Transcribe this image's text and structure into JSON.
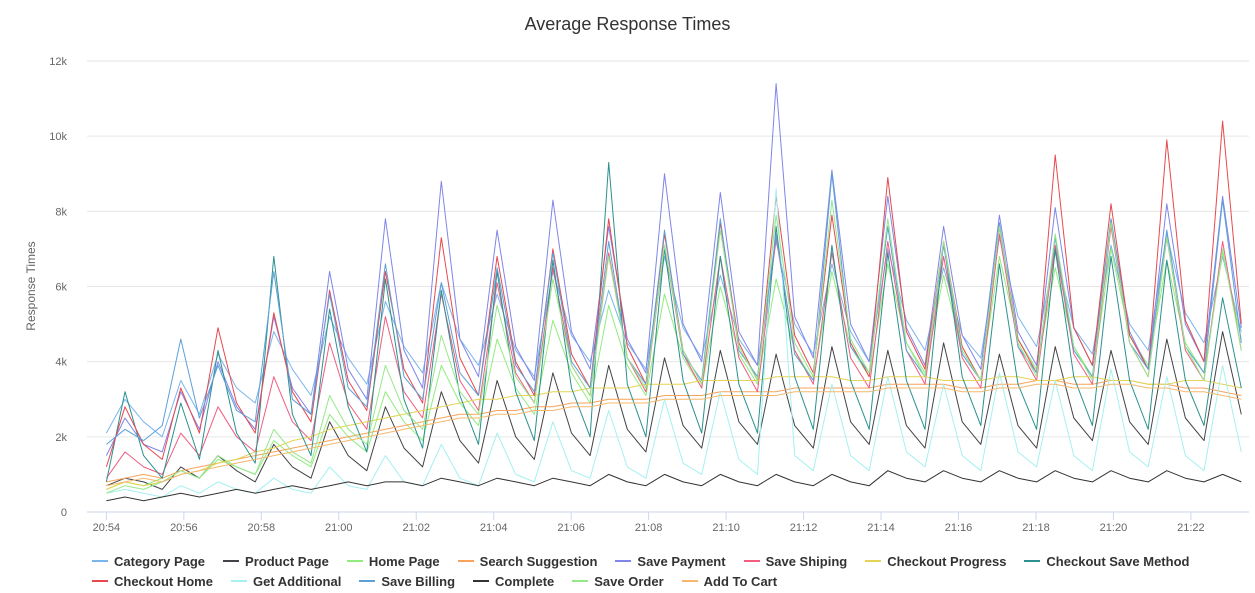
{
  "chart_data": {
    "type": "line",
    "title": "Average Response Times",
    "xlabel": "",
    "ylabel": "Response Times",
    "ylim": [
      0,
      12000
    ],
    "yticks": [
      0,
      2000,
      4000,
      6000,
      8000,
      10000,
      12000
    ],
    "ytick_labels": [
      "0",
      "2k",
      "4k",
      "6k",
      "8k",
      "10k",
      "12k"
    ],
    "xlim": [
      "20:53.5",
      "21:23.5"
    ],
    "xticks": [
      "20:54",
      "20:56",
      "20:58",
      "21:00",
      "21:02",
      "21:04",
      "21:06",
      "21:08",
      "21:10",
      "21:12",
      "21:14",
      "21:16",
      "21:18",
      "21:20",
      "21:22"
    ],
    "grid": true,
    "legend_position": "bottom",
    "series": [
      {
        "name": "Category Page",
        "color": "#7cb5ec",
        "values": [
          2100,
          3000,
          2400,
          2000,
          3500,
          2600,
          4200,
          3300,
          2900,
          4800,
          3800,
          3100,
          5200,
          4100,
          3400,
          5600,
          4400,
          3700,
          6100,
          4600,
          3900,
          5800,
          4300,
          3600,
          6400,
          4700,
          4000,
          5900,
          4500,
          3800,
          6800,
          4900,
          4100,
          6300,
          4600,
          3900,
          7200,
          5000,
          4200,
          6600,
          4800,
          4000,
          7000,
          5100,
          4300,
          6500,
          4700,
          4100,
          7300,
          5200,
          4400,
          6900,
          4900,
          4200,
          7100,
          5000,
          4300,
          7400,
          5300,
          4500,
          6800,
          4800
        ]
      },
      {
        "name": "Product Page",
        "color": "#434348",
        "values": [
          700,
          900,
          800,
          600,
          1200,
          900,
          1500,
          1100,
          800,
          1800,
          1200,
          900,
          2400,
          1500,
          1100,
          2800,
          1700,
          1200,
          3200,
          1900,
          1300,
          3500,
          2000,
          1400,
          3700,
          2100,
          1500,
          3900,
          2200,
          1600,
          4100,
          2300,
          1700,
          4300,
          2400,
          1800,
          4200,
          2300,
          1700,
          4400,
          2400,
          1800,
          4300,
          2300,
          1700,
          4500,
          2400,
          1800,
          4200,
          2300,
          1700,
          4400,
          2500,
          1900,
          4300,
          2400,
          1800,
          4600,
          2500,
          1900,
          4800,
          2600
        ]
      },
      {
        "name": "Home Page",
        "color": "#90ed7d",
        "values": [
          600,
          800,
          700,
          900,
          1100,
          900,
          1400,
          1200,
          1000,
          1900,
          1500,
          1200,
          2600,
          2000,
          1600,
          3200,
          2400,
          1900,
          3900,
          2900,
          2300,
          4600,
          3300,
          2600,
          5100,
          3700,
          2900,
          5500,
          3900,
          3100,
          5800,
          4100,
          3300,
          6000,
          4200,
          3400,
          6200,
          4300,
          3500,
          6400,
          4400,
          3600,
          6600,
          4500,
          3700,
          6300,
          4300,
          3500,
          6800,
          4600,
          3800,
          6500,
          4400,
          3600,
          7000,
          4700,
          3900,
          6700,
          4500,
          3700,
          6900,
          4600
        ]
      },
      {
        "name": "Search Suggestion",
        "color": "#f7a35c",
        "values": [
          800,
          900,
          1000,
          900,
          1100,
          1200,
          1300,
          1400,
          1500,
          1600,
          1700,
          1800,
          1900,
          2000,
          2100,
          2200,
          2300,
          2400,
          2500,
          2600,
          2600,
          2700,
          2700,
          2800,
          2800,
          2900,
          2900,
          3000,
          3000,
          3000,
          3100,
          3100,
          3100,
          3200,
          3200,
          3200,
          3200,
          3300,
          3300,
          3300,
          3300,
          3300,
          3400,
          3400,
          3400,
          3400,
          3300,
          3300,
          3400,
          3400,
          3500,
          3500,
          3400,
          3400,
          3500,
          3500,
          3400,
          3400,
          3300,
          3300,
          3200,
          3100
        ]
      },
      {
        "name": "Save Payment",
        "color": "#8085e9",
        "values": [
          1500,
          2500,
          1800,
          1600,
          3200,
          2200,
          4000,
          2800,
          2200,
          5200,
          3300,
          2600,
          6400,
          3800,
          3000,
          7800,
          4300,
          3300,
          8800,
          4600,
          3600,
          7500,
          4400,
          3500,
          8300,
          4800,
          3800,
          7600,
          4600,
          3700,
          9000,
          5000,
          4000,
          8500,
          4800,
          3900,
          11400,
          5200,
          4100,
          9100,
          5000,
          4000,
          8400,
          4900,
          3900,
          7600,
          4700,
          3800,
          7900,
          4800,
          3900,
          8100,
          4900,
          3900,
          7800,
          4800,
          3800,
          8200,
          5000,
          4000,
          8400,
          4900
        ]
      },
      {
        "name": "Save Shiping",
        "color": "#f15c80",
        "values": [
          900,
          1600,
          1200,
          1000,
          2100,
          1500,
          2800,
          2000,
          1600,
          3600,
          2400,
          1900,
          4500,
          2900,
          2200,
          5200,
          3200,
          2500,
          5800,
          3500,
          2700,
          6100,
          3700,
          2900,
          6500,
          3900,
          3100,
          6900,
          4100,
          3200,
          7100,
          4200,
          3300,
          6800,
          4100,
          3200,
          7300,
          4300,
          3400,
          6900,
          4100,
          3300,
          7200,
          4300,
          3400,
          6800,
          4100,
          3300,
          7400,
          4400,
          3500,
          7100,
          4200,
          3400,
          7600,
          4500,
          3600,
          7300,
          4300,
          3500,
          7200,
          4300
        ]
      },
      {
        "name": "Checkout Progress",
        "color": "#e4d354",
        "values": [
          600,
          800,
          700,
          800,
          1000,
          1100,
          1300,
          1400,
          1600,
          1700,
          1900,
          2000,
          2200,
          2300,
          2400,
          2500,
          2600,
          2700,
          2800,
          2900,
          3000,
          3000,
          3100,
          3100,
          3200,
          3200,
          3300,
          3300,
          3300,
          3400,
          3400,
          3400,
          3500,
          3500,
          3500,
          3500,
          3600,
          3600,
          3600,
          3600,
          3500,
          3500,
          3600,
          3600,
          3600,
          3500,
          3500,
          3500,
          3600,
          3600,
          3500,
          3500,
          3600,
          3600,
          3500,
          3500,
          3400,
          3400,
          3500,
          3500,
          3400,
          3300
        ]
      },
      {
        "name": "Checkout Save Method",
        "color": "#2b908f",
        "values": [
          800,
          3200,
          1500,
          900,
          2900,
          1400,
          4300,
          2100,
          1300,
          6800,
          2600,
          1500,
          5400,
          2800,
          1600,
          6200,
          3000,
          1700,
          5900,
          3100,
          1800,
          6400,
          3200,
          1900,
          6700,
          3300,
          2000,
          9300,
          3400,
          2000,
          7000,
          3500,
          2100,
          6800,
          3400,
          2100,
          7600,
          3600,
          2200,
          7100,
          3500,
          2200,
          6900,
          3500,
          2200,
          7200,
          3600,
          2300,
          6600,
          3400,
          2200,
          7000,
          3600,
          2300,
          6800,
          3500,
          2200,
          6700,
          3500,
          2300,
          5700,
          3300
        ]
      },
      {
        "name": "Checkout Home",
        "color": "#e8484d",
        "values": [
          1200,
          2800,
          1800,
          1400,
          3300,
          2100,
          4900,
          2900,
          2100,
          5300,
          3200,
          2400,
          5900,
          3500,
          2700,
          6400,
          3800,
          2900,
          7300,
          4100,
          3100,
          6800,
          4000,
          3100,
          7000,
          4200,
          3300,
          7800,
          4400,
          3400,
          7400,
          4300,
          3400,
          7700,
          4500,
          3500,
          8400,
          4700,
          3700,
          7900,
          4500,
          3600,
          8900,
          4800,
          3800,
          7200,
          4400,
          3500,
          7600,
          4600,
          3700,
          9500,
          4900,
          3900,
          8200,
          4700,
          3800,
          9900,
          5100,
          4000,
          10400,
          5000
        ]
      },
      {
        "name": "Get Additional",
        "color": "#a6f0f0",
        "values": [
          500,
          600,
          500,
          400,
          700,
          500,
          800,
          600,
          500,
          900,
          600,
          500,
          1200,
          700,
          600,
          1500,
          800,
          700,
          1800,
          900,
          700,
          2100,
          1000,
          800,
          2400,
          1100,
          900,
          2700,
          1200,
          900,
          3000,
          1300,
          1000,
          3200,
          1400,
          1000,
          8600,
          1500,
          1100,
          3400,
          1500,
          1100,
          3600,
          1600,
          1200,
          3400,
          1500,
          1100,
          3700,
          1600,
          1200,
          3500,
          1500,
          1100,
          3800,
          1600,
          1200,
          3600,
          1500,
          1100,
          3900,
          1600
        ]
      },
      {
        "name": "Save Billing",
        "color": "#5da0d8",
        "values": [
          1800,
          2200,
          1900,
          2300,
          4600,
          2500,
          3900,
          2700,
          2400,
          6400,
          3000,
          2600,
          5800,
          3300,
          2800,
          6600,
          3600,
          3000,
          6100,
          3700,
          3100,
          6500,
          3900,
          3200,
          6900,
          4000,
          3300,
          7200,
          4100,
          3400,
          7500,
          4200,
          3500,
          7800,
          4300,
          3600,
          7400,
          4200,
          3500,
          9000,
          4400,
          3700,
          7600,
          4300,
          3600,
          7100,
          4200,
          3500,
          7700,
          4400,
          3700,
          7300,
          4300,
          3600,
          7800,
          4500,
          3800,
          7500,
          4400,
          3700,
          8300,
          4500
        ]
      },
      {
        "name": "Complete",
        "color": "#333333",
        "values": [
          300,
          400,
          300,
          400,
          500,
          400,
          500,
          600,
          500,
          600,
          700,
          600,
          700,
          800,
          700,
          800,
          800,
          700,
          900,
          800,
          700,
          900,
          800,
          700,
          900,
          800,
          700,
          1000,
          800,
          700,
          1000,
          800,
          700,
          1000,
          800,
          700,
          1000,
          800,
          700,
          1000,
          800,
          700,
          1100,
          900,
          800,
          1100,
          900,
          800,
          1100,
          900,
          800,
          1100,
          900,
          800,
          1100,
          900,
          800,
          1100,
          900,
          800,
          1000,
          800
        ]
      },
      {
        "name": "Save Order",
        "color": "#95e88a",
        "values": [
          500,
          700,
          600,
          800,
          1100,
          900,
          1500,
          1200,
          1000,
          2200,
          1600,
          1300,
          3100,
          2200,
          1800,
          3900,
          2700,
          2200,
          4700,
          3200,
          2600,
          5500,
          3600,
          2900,
          6200,
          3900,
          3100,
          6800,
          4100,
          3300,
          7100,
          4300,
          3400,
          7500,
          4400,
          3500,
          7900,
          4500,
          3600,
          8300,
          4600,
          3700,
          7800,
          4500,
          3600,
          7200,
          4300,
          3500,
          7600,
          4500,
          3600,
          7400,
          4400,
          3500,
          7700,
          4500,
          3600,
          7300,
          4400,
          3500,
          7000,
          4300
        ]
      },
      {
        "name": "Add To Cart",
        "color": "#f5b86e",
        "values": [
          700,
          800,
          900,
          800,
          1000,
          1100,
          1200,
          1300,
          1400,
          1500,
          1600,
          1700,
          1800,
          1900,
          2000,
          2100,
          2200,
          2300,
          2400,
          2500,
          2500,
          2600,
          2600,
          2700,
          2700,
          2800,
          2800,
          2900,
          2900,
          2900,
          3000,
          3000,
          3000,
          3100,
          3100,
          3100,
          3100,
          3200,
          3200,
          3200,
          3200,
          3200,
          3300,
          3300,
          3300,
          3300,
          3200,
          3200,
          3300,
          3300,
          3400,
          3400,
          3300,
          3300,
          3400,
          3400,
          3300,
          3300,
          3200,
          3200,
          3100,
          3000
        ]
      }
    ]
  }
}
